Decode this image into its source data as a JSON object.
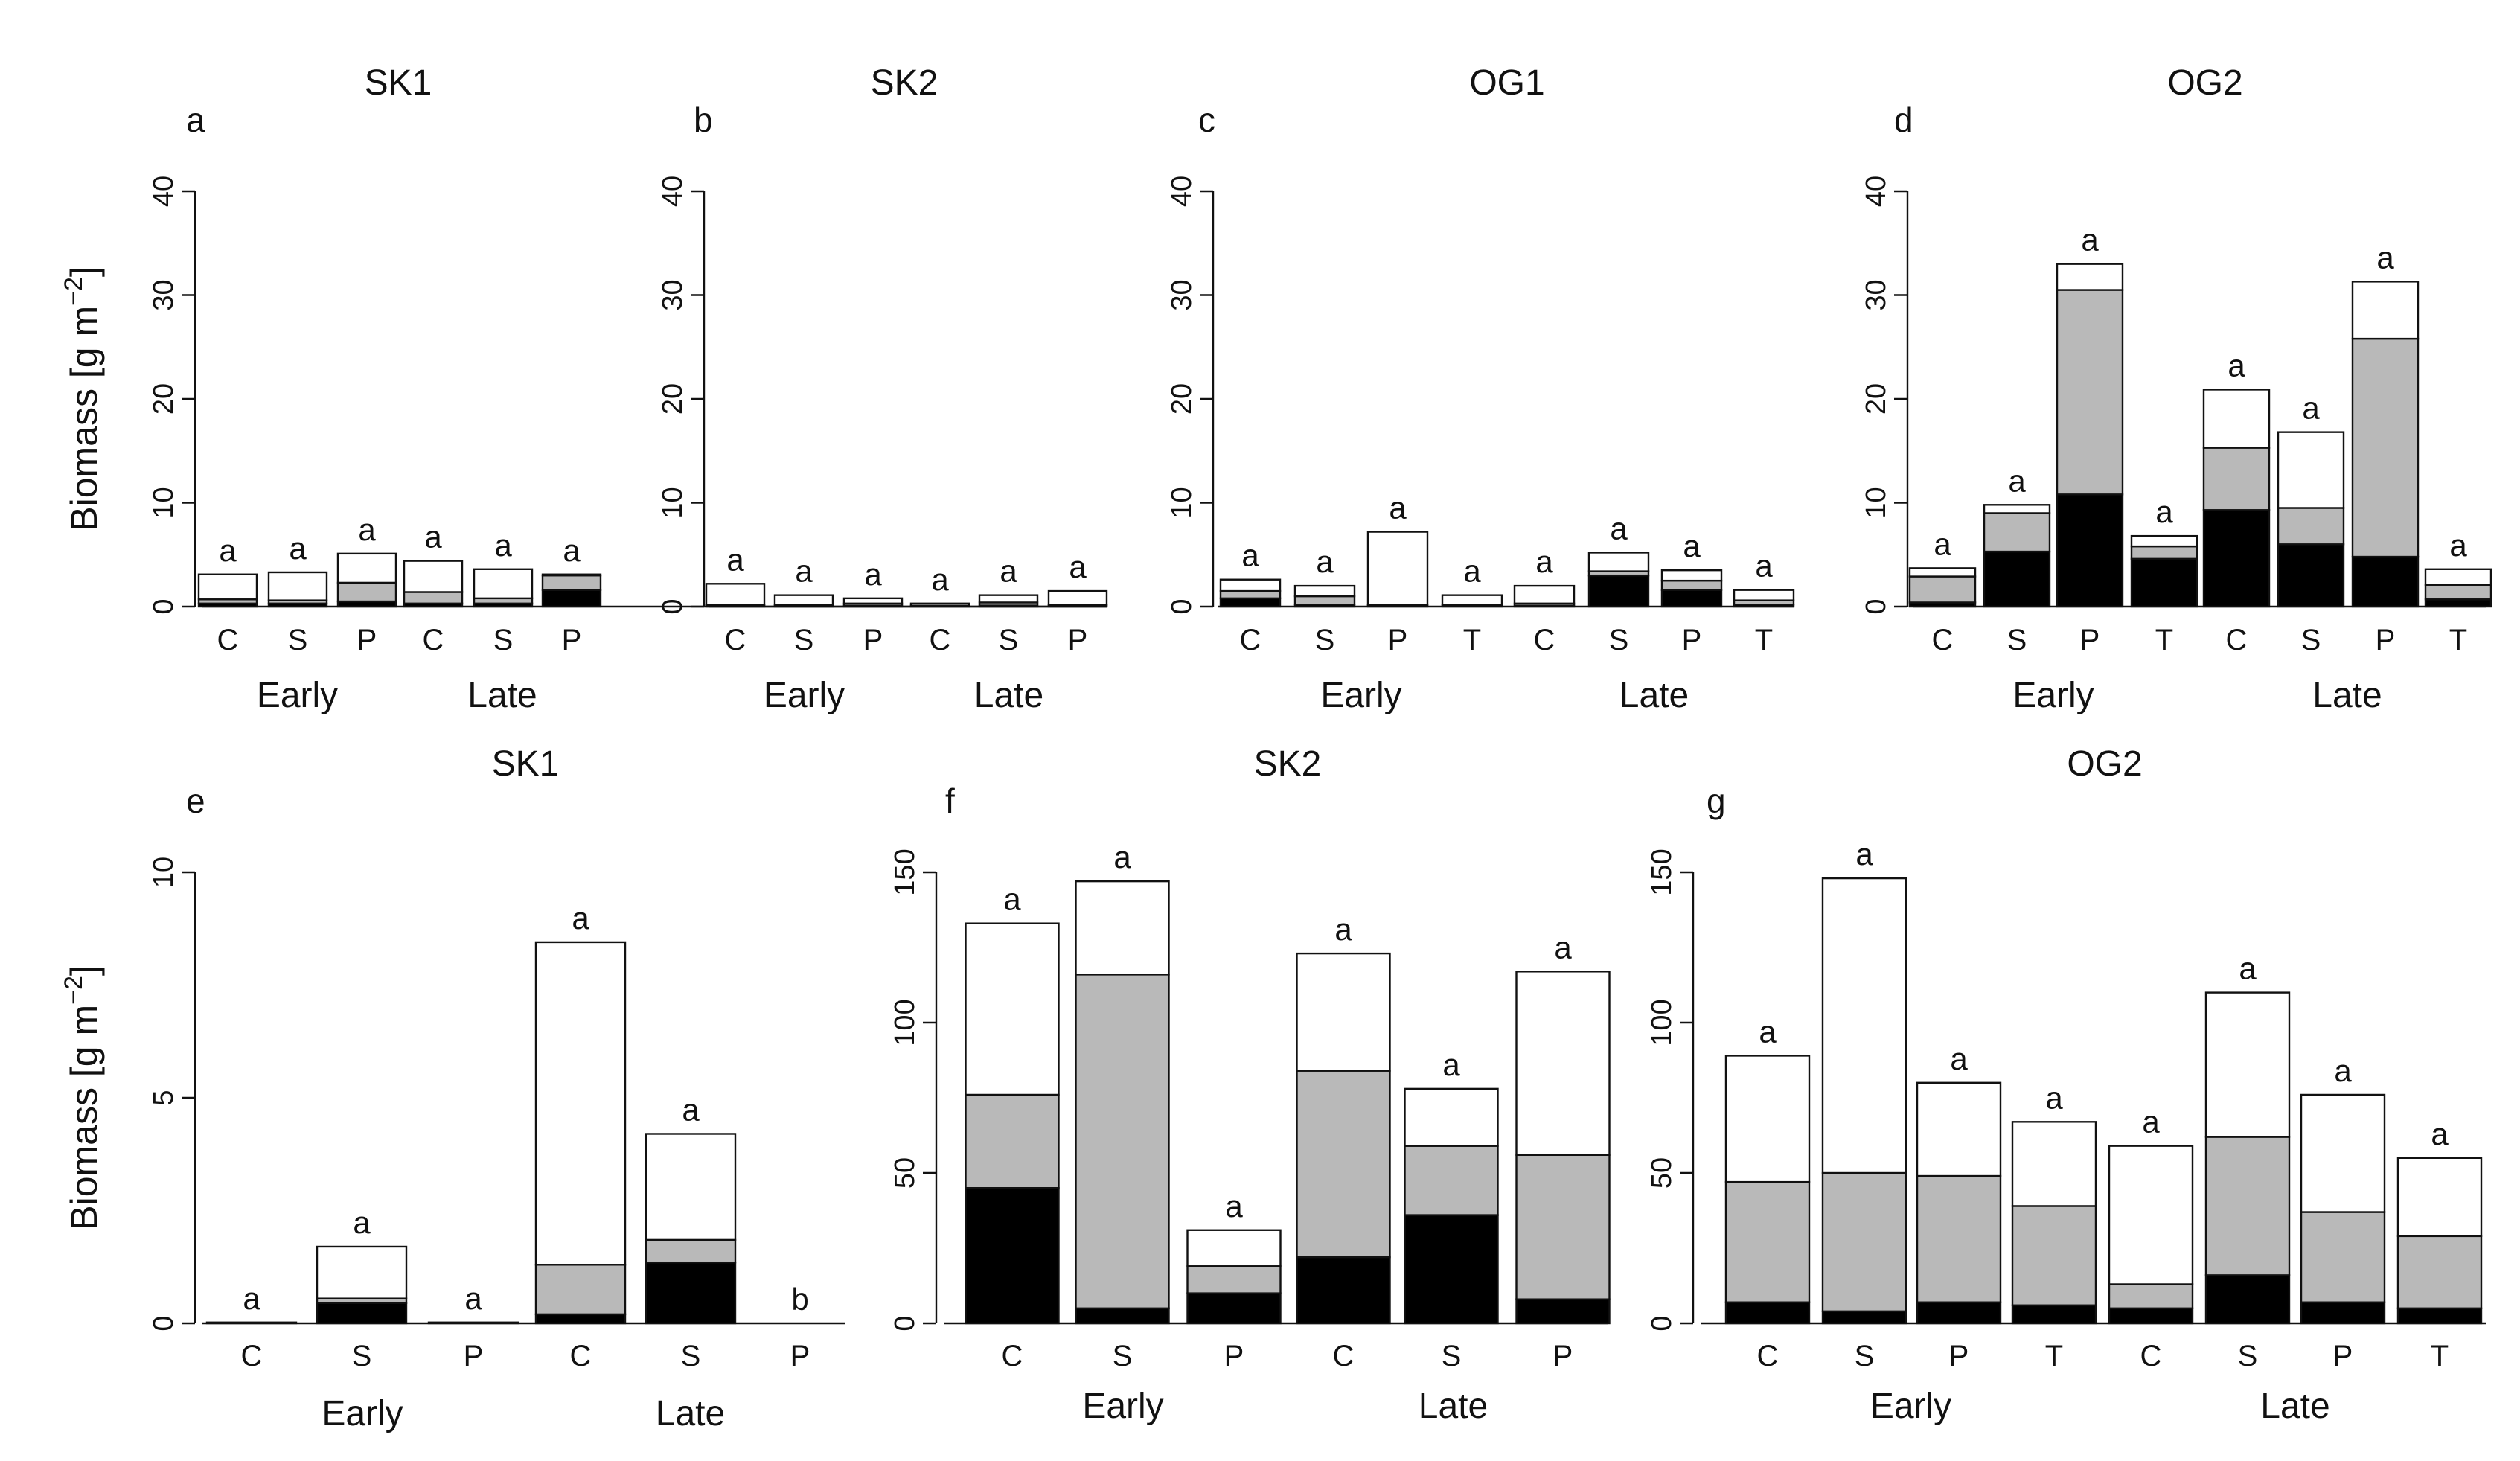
{
  "figure": {
    "ylabel_text": "Biomass [g m",
    "ylabel_sup": "−2",
    "ylabel_close": "]",
    "legend_colors": {
      "black": "#000000",
      "gray": "#b9b9b9",
      "white": "#ffffff"
    }
  },
  "chart_data": [
    {
      "id": "a",
      "letter": "a",
      "title": "SK1",
      "type": "stacked-bar",
      "ylabel": "Biomass [g m−2]",
      "ylim": [
        0,
        40
      ],
      "yticks": [
        0,
        10,
        20,
        30,
        40
      ],
      "groups": [
        "Early",
        "Late"
      ],
      "group_sizes": [
        3,
        3
      ],
      "categories": [
        "C",
        "S",
        "P",
        "C",
        "S",
        "P"
      ],
      "series": [
        {
          "name": "black",
          "color": "#000000",
          "values": [
            0.3,
            0.3,
            0.5,
            0.3,
            0.3,
            1.6
          ]
        },
        {
          "name": "gray",
          "color": "#b9b9b9",
          "values": [
            0.4,
            0.3,
            1.8,
            1.1,
            0.5,
            1.4
          ]
        },
        {
          "name": "white",
          "color": "#ffffff",
          "values": [
            2.4,
            2.7,
            2.8,
            3.0,
            2.8,
            0.1
          ]
        }
      ],
      "labels": [
        "a",
        "a",
        "a",
        "a",
        "a",
        "a"
      ]
    },
    {
      "id": "b",
      "letter": "b",
      "title": "SK2",
      "type": "stacked-bar",
      "ylabel": "",
      "ylim": [
        0,
        40
      ],
      "yticks": [
        0,
        10,
        20,
        30,
        40
      ],
      "groups": [
        "Early",
        "Late"
      ],
      "group_sizes": [
        3,
        3
      ],
      "categories": [
        "C",
        "S",
        "P",
        "C",
        "S",
        "P"
      ],
      "series": [
        {
          "name": "black",
          "color": "#000000",
          "values": [
            0.1,
            0.1,
            0.1,
            0.1,
            0.1,
            0.1
          ]
        },
        {
          "name": "gray",
          "color": "#b9b9b9",
          "values": [
            0.1,
            0.1,
            0.2,
            0.0,
            0.3,
            0.1
          ]
        },
        {
          "name": "white",
          "color": "#ffffff",
          "values": [
            2.0,
            0.9,
            0.5,
            0.2,
            0.7,
            1.3
          ]
        }
      ],
      "labels": [
        "a",
        "a",
        "a",
        "a",
        "a",
        "a"
      ]
    },
    {
      "id": "c",
      "letter": "c",
      "title": "OG1",
      "type": "stacked-bar",
      "ylabel": "",
      "ylim": [
        0,
        40
      ],
      "yticks": [
        0,
        10,
        20,
        30,
        40
      ],
      "groups": [
        "Early",
        "Late"
      ],
      "group_sizes": [
        4,
        4
      ],
      "categories": [
        "C",
        "S",
        "P",
        "T",
        "C",
        "S",
        "P",
        "T"
      ],
      "series": [
        {
          "name": "black",
          "color": "#000000",
          "values": [
            0.8,
            0.2,
            0.1,
            0.1,
            0.1,
            3.0,
            1.6,
            0.2
          ]
        },
        {
          "name": "gray",
          "color": "#b9b9b9",
          "values": [
            0.7,
            0.8,
            0.1,
            0.1,
            0.2,
            0.4,
            0.9,
            0.4
          ]
        },
        {
          "name": "white",
          "color": "#ffffff",
          "values": [
            1.1,
            1.0,
            7.0,
            0.9,
            1.7,
            1.8,
            1.0,
            1.0
          ]
        }
      ],
      "labels": [
        "a",
        "a",
        "a",
        "a",
        "a",
        "a",
        "a",
        "a"
      ]
    },
    {
      "id": "d",
      "letter": "d",
      "title": "OG2",
      "type": "stacked-bar",
      "ylabel": "",
      "ylim": [
        0,
        40
      ],
      "yticks": [
        0,
        10,
        20,
        30,
        40
      ],
      "groups": [
        "Early",
        "Late"
      ],
      "group_sizes": [
        4,
        4
      ],
      "categories": [
        "C",
        "S",
        "P",
        "T",
        "C",
        "S",
        "P",
        "T"
      ],
      "series": [
        {
          "name": "black",
          "color": "#000000",
          "values": [
            0.4,
            5.3,
            10.8,
            4.6,
            9.3,
            6.0,
            4.8,
            0.7
          ]
        },
        {
          "name": "gray",
          "color": "#b9b9b9",
          "values": [
            2.5,
            3.7,
            19.7,
            1.2,
            6.0,
            3.5,
            21.0,
            1.4
          ]
        },
        {
          "name": "white",
          "color": "#ffffff",
          "values": [
            0.8,
            0.8,
            2.5,
            1.0,
            5.6,
            7.3,
            5.5,
            1.5
          ]
        }
      ],
      "labels": [
        "a",
        "a",
        "a",
        "a",
        "a",
        "a",
        "a",
        "a"
      ]
    },
    {
      "id": "e",
      "letter": "e",
      "title": "SK1",
      "type": "stacked-bar",
      "ylabel": "Biomass [g m−2]",
      "ylim": [
        0,
        10
      ],
      "yticks": [
        0,
        5,
        10
      ],
      "groups": [
        "Early",
        "Late"
      ],
      "group_sizes": [
        3,
        3
      ],
      "categories": [
        "C",
        "S",
        "P",
        "C",
        "S",
        "P"
      ],
      "series": [
        {
          "name": "black",
          "color": "#000000",
          "values": [
            0.02,
            0.45,
            0.02,
            0.2,
            1.35,
            0.0
          ]
        },
        {
          "name": "gray",
          "color": "#b9b9b9",
          "values": [
            0.0,
            0.1,
            0.0,
            1.1,
            0.5,
            0.0
          ]
        },
        {
          "name": "white",
          "color": "#ffffff",
          "values": [
            0.0,
            1.15,
            0.0,
            7.15,
            2.35,
            0.0
          ]
        }
      ],
      "labels": [
        "a",
        "a",
        "a",
        "a",
        "a",
        "b"
      ]
    },
    {
      "id": "f",
      "letter": "f",
      "title": "SK2",
      "type": "stacked-bar",
      "ylabel": "",
      "ylim": [
        0,
        150
      ],
      "yticks": [
        0,
        50,
        100,
        150
      ],
      "groups": [
        "Early",
        "Late"
      ],
      "group_sizes": [
        3,
        3
      ],
      "categories": [
        "C",
        "S",
        "P",
        "C",
        "S",
        "P"
      ],
      "series": [
        {
          "name": "black",
          "color": "#000000",
          "values": [
            45,
            5,
            10,
            22,
            36,
            8
          ]
        },
        {
          "name": "gray",
          "color": "#b9b9b9",
          "values": [
            31,
            111,
            9,
            62,
            23,
            48
          ]
        },
        {
          "name": "white",
          "color": "#ffffff",
          "values": [
            57,
            31,
            12,
            39,
            19,
            61
          ]
        }
      ],
      "labels": [
        "a",
        "a",
        "a",
        "a",
        "a",
        "a"
      ]
    },
    {
      "id": "g",
      "letter": "g",
      "title": "OG2",
      "type": "stacked-bar",
      "ylabel": "",
      "ylim": [
        0,
        150
      ],
      "yticks": [
        0,
        50,
        100,
        150
      ],
      "groups": [
        "Early",
        "Late"
      ],
      "group_sizes": [
        4,
        4
      ],
      "categories": [
        "C",
        "S",
        "P",
        "T",
        "C",
        "S",
        "P",
        "T"
      ],
      "series": [
        {
          "name": "black",
          "color": "#000000",
          "values": [
            7,
            4,
            7,
            6,
            5,
            16,
            7,
            5
          ]
        },
        {
          "name": "gray",
          "color": "#b9b9b9",
          "values": [
            40,
            46,
            42,
            33,
            8,
            46,
            30,
            24
          ]
        },
        {
          "name": "white",
          "color": "#ffffff",
          "values": [
            42,
            98,
            31,
            28,
            46,
            48,
            39,
            26
          ]
        }
      ],
      "labels": [
        "a",
        "a",
        "a",
        "a",
        "a",
        "a",
        "a",
        "a"
      ]
    }
  ]
}
